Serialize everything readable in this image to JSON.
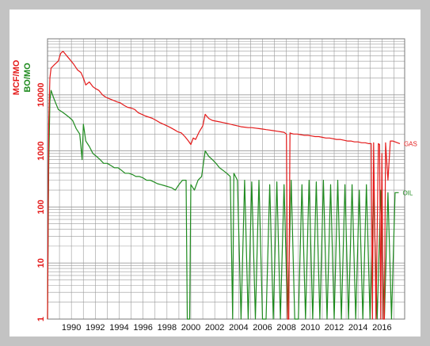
{
  "chart_data": {
    "type": "line",
    "title": "",
    "xlabel": "",
    "ylabel_gas": "MCF/MO",
    "ylabel_oil": "BO/MO",
    "y_scale": "log",
    "ylim": [
      1,
      100000
    ],
    "xlim": [
      1988.0,
      2017.9
    ],
    "grid": true,
    "x_tick_labels": [
      "1990",
      "1992",
      "1994",
      "1996",
      "1998",
      "2000",
      "2002",
      "2004",
      "2006",
      "2008",
      "2010",
      "2012",
      "2014",
      "2016"
    ],
    "x_tick_values": [
      1990,
      1992,
      1994,
      1996,
      1998,
      2000,
      2002,
      2004,
      2006,
      2008,
      2010,
      2012,
      2014,
      2016
    ],
    "y_tick_labels": [
      "1",
      "10",
      "100",
      "1000",
      "10000"
    ],
    "y_tick_values": [
      1,
      10,
      100,
      1000,
      10000
    ],
    "colors": {
      "gas": "#e41a1a",
      "oil": "#1e8a1e",
      "grid": "#9a9a9a",
      "frame": "#c3c3c3"
    },
    "series": [
      {
        "name": "GAS",
        "color": "#e41a1a",
        "x": [
          1988.0,
          1988.1,
          1988.2,
          1988.3,
          1988.6,
          1988.9,
          1989.1,
          1989.3,
          1989.6,
          1989.9,
          1990.2,
          1990.5,
          1990.8,
          1991.0,
          1991.2,
          1991.5,
          1991.8,
          1992.0,
          1992.3,
          1992.6,
          1992.9,
          1993.2,
          1993.5,
          1993.8,
          1994.1,
          1994.4,
          1994.7,
          1995.0,
          1995.3,
          1995.6,
          1995.9,
          1996.2,
          1996.5,
          1996.8,
          1997.1,
          1997.4,
          1997.7,
          1998.0,
          1998.3,
          1998.6,
          1998.9,
          1999.2,
          1999.5,
          1999.8,
          2000.0,
          2000.2,
          2000.4,
          2000.7,
          2001.0,
          2001.2,
          2001.5,
          2001.8,
          2002.1,
          2002.4,
          2002.7,
          2003.0,
          2003.3,
          2003.6,
          2003.9,
          2004.2,
          2004.5,
          2004.8,
          2005.1,
          2005.4,
          2005.7,
          2006.0,
          2006.3,
          2006.6,
          2006.9,
          2007.2,
          2007.5,
          2007.8,
          2008.0,
          2008.1,
          2008.2,
          2008.3,
          2008.4,
          2008.6,
          2008.9,
          2009.2,
          2009.5,
          2009.8,
          2010.1,
          2010.4,
          2010.7,
          2011.0,
          2011.3,
          2011.6,
          2011.9,
          2012.2,
          2012.5,
          2012.8,
          2013.1,
          2013.4,
          2013.7,
          2014.0,
          2014.3,
          2014.6,
          2014.9,
          2015.1,
          2015.2,
          2015.3,
          2015.5,
          2015.7,
          2015.8,
          2015.9,
          2016.0,
          2016.1,
          2016.2,
          2016.3,
          2016.5,
          2016.7,
          2016.9,
          2017.1,
          2017.3,
          2017.5
        ],
        "y": [
          1,
          3000,
          20000,
          30000,
          35000,
          40000,
          55000,
          60000,
          50000,
          42000,
          35000,
          28000,
          25000,
          20000,
          15000,
          17000,
          14000,
          13000,
          12000,
          10000,
          9000,
          8500,
          8000,
          7500,
          7200,
          6500,
          6000,
          5800,
          5500,
          4800,
          4500,
          4200,
          4000,
          3800,
          3500,
          3200,
          3000,
          2800,
          2600,
          2400,
          2200,
          2100,
          1800,
          1500,
          1300,
          1700,
          1600,
          2200,
          2800,
          4500,
          3800,
          3500,
          3400,
          3300,
          3200,
          3100,
          3000,
          2900,
          2800,
          2700,
          2650,
          2600,
          2600,
          2550,
          2500,
          2450,
          2400,
          2350,
          2300,
          2250,
          2200,
          2150,
          2000,
          1,
          1,
          2100,
          2050,
          2000,
          2000,
          1950,
          1900,
          1900,
          1850,
          1800,
          1800,
          1750,
          1700,
          1700,
          1650,
          1600,
          1600,
          1550,
          1500,
          1500,
          1450,
          1450,
          1400,
          1400,
          1350,
          1350,
          1,
          1400,
          1,
          1350,
          1300,
          1,
          900,
          1,
          1,
          1400,
          300,
          1500,
          1500,
          1450,
          1400,
          1350
        ]
      },
      {
        "name": "OIL",
        "color": "#1e8a1e",
        "x": [
          1988.0,
          1988.1,
          1988.2,
          1988.3,
          1988.5,
          1988.7,
          1988.9,
          1989.2,
          1989.5,
          1989.8,
          1990.1,
          1990.4,
          1990.7,
          1990.9,
          1991.0,
          1991.2,
          1991.5,
          1991.8,
          1992.1,
          1992.4,
          1992.7,
          1993.0,
          1993.3,
          1993.6,
          1993.9,
          1994.2,
          1994.5,
          1994.8,
          1995.1,
          1995.4,
          1995.7,
          1996.0,
          1996.3,
          1996.6,
          1996.9,
          1997.2,
          1997.5,
          1997.8,
          1998.1,
          1998.4,
          1998.7,
          1999.0,
          1999.3,
          1999.6,
          1999.7,
          1999.8,
          1999.9,
          2000.0,
          2000.3,
          2000.6,
          2000.9,
          2001.2,
          2001.5,
          2001.8,
          2002.1,
          2002.4,
          2002.7,
          2003.0,
          2003.3,
          2003.5,
          2003.6,
          2003.9,
          2004.2,
          2004.5,
          2004.8,
          2005.1,
          2005.4,
          2005.7,
          2006.0,
          2006.3,
          2006.6,
          2006.9,
          2007.2,
          2007.5,
          2007.8,
          2008.1,
          2008.4,
          2008.7,
          2009.0,
          2009.3,
          2009.6,
          2009.9,
          2010.2,
          2010.5,
          2010.8,
          2011.1,
          2011.4,
          2011.7,
          2012.0,
          2012.3,
          2012.6,
          2012.9,
          2013.2,
          2013.5,
          2013.8,
          2014.1,
          2014.4,
          2014.7,
          2015.0,
          2015.3,
          2015.6,
          2015.9,
          2016.2,
          2016.5,
          2016.8,
          2017.1,
          2017.4
        ],
        "y": [
          1,
          500,
          8000,
          12000,
          9000,
          7000,
          5500,
          5000,
          4500,
          4000,
          3500,
          2500,
          2000,
          700,
          3000,
          1500,
          1200,
          900,
          800,
          700,
          600,
          600,
          550,
          500,
          500,
          450,
          400,
          400,
          380,
          350,
          350,
          330,
          300,
          300,
          280,
          260,
          250,
          240,
          230,
          220,
          200,
          250,
          300,
          300,
          1,
          1,
          1,
          250,
          200,
          300,
          350,
          1000,
          800,
          700,
          600,
          500,
          450,
          400,
          350,
          1,
          400,
          300,
          1,
          300,
          1,
          280,
          1,
          300,
          1,
          1,
          250,
          1,
          280,
          1,
          250,
          1,
          300,
          1,
          1,
          250,
          1,
          300,
          1,
          280,
          1,
          300,
          1,
          250,
          1,
          300,
          1,
          250,
          1,
          250,
          1,
          200,
          1,
          250,
          1,
          180,
          1,
          200,
          1,
          180,
          1,
          180,
          180
        ]
      }
    ]
  }
}
